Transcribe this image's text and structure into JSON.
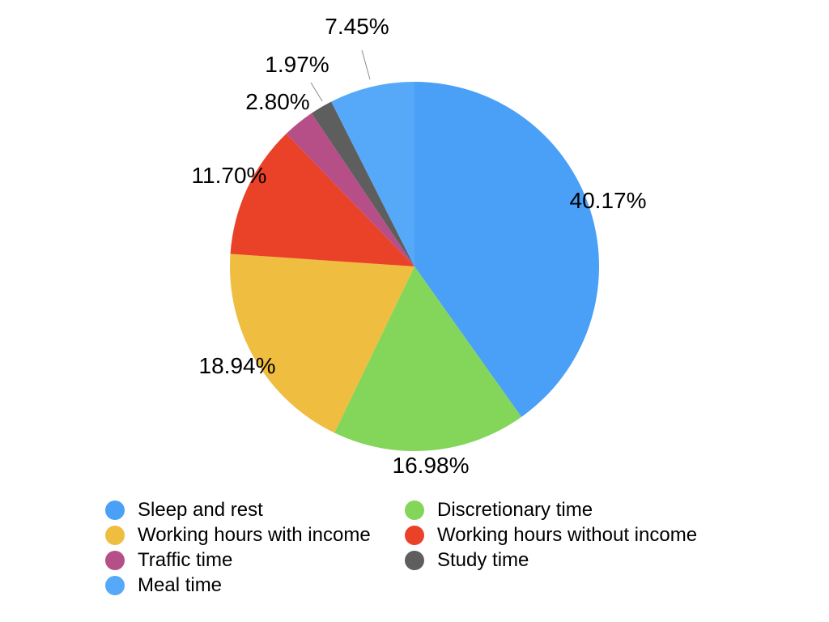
{
  "chart_data": {
    "type": "pie",
    "slices": [
      {
        "label": "Sleep and rest",
        "value": 40.17,
        "display": "40.17%",
        "color": "#4A9FF7"
      },
      {
        "label": "Discretionary time",
        "value": 16.98,
        "display": "16.98%",
        "color": "#84D65A"
      },
      {
        "label": "Working hours with income",
        "value": 18.94,
        "display": "18.94%",
        "color": "#EFBD40"
      },
      {
        "label": "Working hours without income",
        "value": 11.7,
        "display": "11.70%",
        "color": "#E94228"
      },
      {
        "label": "Traffic time",
        "value": 2.8,
        "display": "2.80%",
        "color": "#B64F87"
      },
      {
        "label": "Study time",
        "value": 1.97,
        "display": "1.97%",
        "color": "#5E5E5E"
      },
      {
        "label": "Meal time",
        "value": 7.45,
        "display": "7.45%",
        "color": "#56A9F8"
      }
    ],
    "legend": [
      {
        "label": "Sleep and rest",
        "color": "#4A9FF7"
      },
      {
        "label": "Discretionary time",
        "color": "#84D65A"
      },
      {
        "label": "Working hours with income",
        "color": "#EFBD40"
      },
      {
        "label": "Working hours without income",
        "color": "#E94228"
      },
      {
        "label": "Traffic time",
        "color": "#B64F87"
      },
      {
        "label": "Study time",
        "color": "#5E5E5E"
      },
      {
        "label": "Meal time",
        "color": "#56A9F8"
      }
    ],
    "legend_position": "bottom"
  }
}
